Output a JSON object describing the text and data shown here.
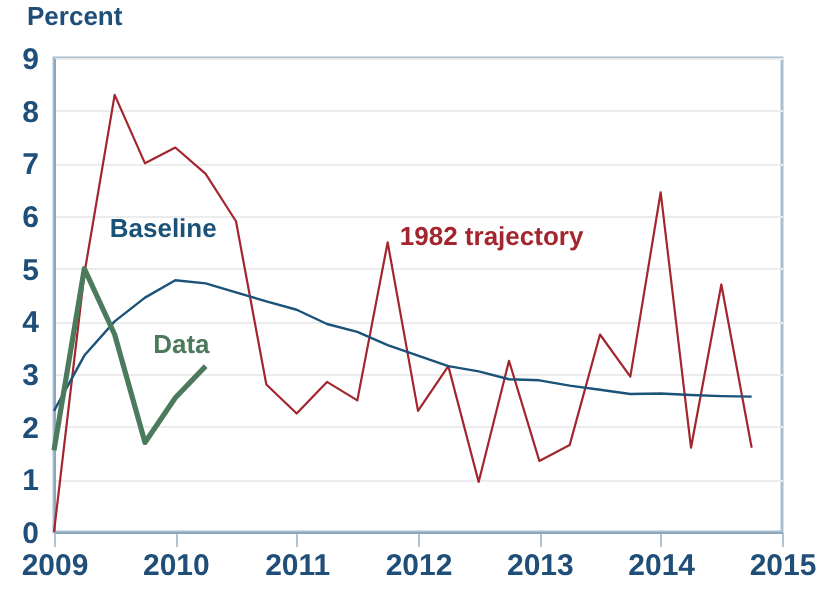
{
  "chart_data": {
    "type": "line",
    "ylabel": "Percent",
    "xlim": [
      2009,
      2015
    ],
    "xticks": [
      2009,
      2010,
      2011,
      2012,
      2013,
      2014,
      2015
    ],
    "ylim": [
      0,
      9
    ],
    "yticks": [
      0,
      1,
      2,
      3,
      4,
      5,
      6,
      7,
      8,
      9
    ],
    "grid": "y",
    "legend": false,
    "x": [
      2009,
      2009.25,
      2009.5,
      2009.75,
      2010,
      2010.25,
      2010.5,
      2010.75,
      2011,
      2011.25,
      2011.5,
      2011.75,
      2012,
      2012.25,
      2012.5,
      2012.75,
      2013,
      2013.25,
      2013.5,
      2013.75,
      2014,
      2014.25,
      2014.5,
      2014.75
    ],
    "series": [
      {
        "name": "1982 trajectory",
        "color": "#a3262e",
        "values": [
          0,
          4.9,
          8.3,
          7.0,
          7.3,
          6.8,
          5.9,
          2.8,
          2.25,
          2.85,
          2.5,
          5.5,
          2.3,
          3.15,
          0.95,
          3.25,
          1.35,
          1.65,
          3.75,
          2.95,
          6.45,
          1.6,
          4.7,
          1.6
        ]
      },
      {
        "name": "Baseline",
        "color": "#1b5278",
        "values": [
          2.3,
          3.35,
          4.0,
          4.45,
          4.78,
          4.72,
          4.55,
          4.38,
          4.22,
          3.95,
          3.8,
          3.55,
          3.35,
          3.15,
          3.05,
          2.9,
          2.88,
          2.78,
          2.7,
          2.62,
          2.63,
          2.6,
          2.58,
          2.57
        ]
      },
      {
        "name": "Data",
        "color": "#4c7a5c",
        "values": [
          1.55,
          5.0,
          3.75,
          1.7,
          2.55,
          3.15,
          null,
          null,
          null,
          null,
          null,
          null,
          null,
          null,
          null,
          null,
          null,
          null,
          null,
          null,
          null,
          null,
          null,
          null
        ]
      }
    ]
  }
}
